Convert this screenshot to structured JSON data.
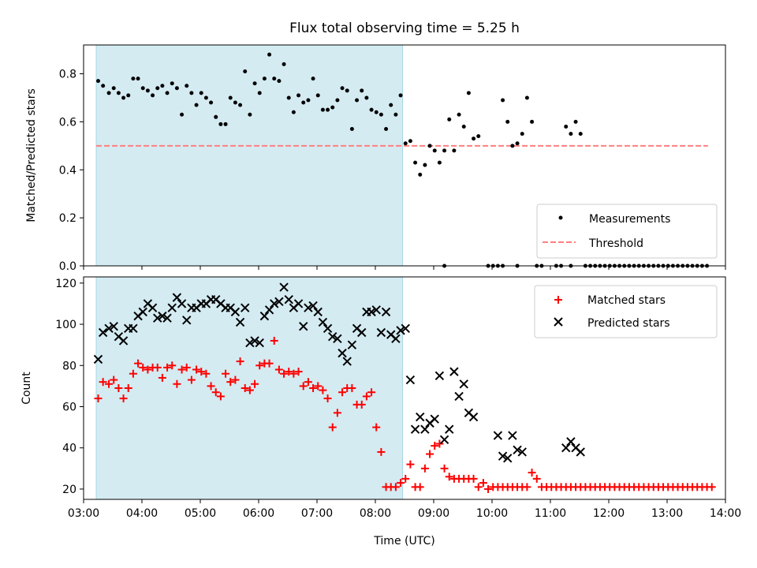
{
  "chart_data": [
    {
      "type": "scatter",
      "title": "Flux total observing time = 5.25 h",
      "xlabel": "",
      "ylabel": "Matched/Predicted stars",
      "xlim": [
        "03:00",
        "14:00"
      ],
      "ylim": [
        0,
        0.92
      ],
      "yticks": [
        "0.0",
        "0.2",
        "0.4",
        "0.6",
        "0.8"
      ],
      "shaded_region": {
        "start": "03:13",
        "end": "08:28",
        "color": "#d4ebf2"
      },
      "legend": {
        "position": "bottom-right",
        "entries": [
          "Measurements",
          "Threshold"
        ]
      },
      "series": [
        {
          "name": "Threshold",
          "style": "dashed-line",
          "color": "#ff7f7f",
          "x": [
            "03:13",
            "13:42"
          ],
          "y": [
            0.5,
            0.5
          ]
        },
        {
          "name": "Measurements",
          "style": "dot",
          "color": "#000000",
          "x": [
            "03:15",
            "03:20",
            "03:26",
            "03:31",
            "03:36",
            "03:41",
            "03:46",
            "03:51",
            "03:56",
            "04:01",
            "04:06",
            "04:11",
            "04:16",
            "04:21",
            "04:26",
            "04:31",
            "04:36",
            "04:41",
            "04:46",
            "04:51",
            "04:56",
            "05:01",
            "05:06",
            "05:11",
            "05:16",
            "05:21",
            "05:26",
            "05:31",
            "05:36",
            "05:41",
            "05:46",
            "05:51",
            "05:56",
            "06:01",
            "06:06",
            "06:11",
            "06:16",
            "06:21",
            "06:26",
            "06:31",
            "06:36",
            "06:41",
            "06:46",
            "06:51",
            "06:56",
            "07:01",
            "07:06",
            "07:11",
            "07:16",
            "07:21",
            "07:26",
            "07:31",
            "07:36",
            "07:41",
            "07:46",
            "07:51",
            "07:56",
            "08:01",
            "08:06",
            "08:11",
            "08:16",
            "08:21",
            "08:26",
            "08:31",
            "08:36",
            "08:41",
            "08:46",
            "08:51",
            "08:56",
            "09:01",
            "09:06",
            "09:11",
            "09:16",
            "09:21",
            "09:26",
            "09:31",
            "09:36",
            "09:41",
            "09:46",
            "10:11",
            "10:16",
            "10:21",
            "10:26",
            "10:31",
            "10:36",
            "10:41",
            "11:16",
            "11:21",
            "11:26",
            "11:31",
            "09:11",
            "09:56",
            "10:01",
            "10:06",
            "10:11",
            "10:26",
            "10:46",
            "10:51",
            "11:06",
            "11:11",
            "11:21",
            "11:36",
            "11:41",
            "11:46",
            "11:51",
            "11:56",
            "12:01",
            "12:06",
            "12:11",
            "12:16",
            "12:21",
            "12:26",
            "12:31",
            "12:36",
            "12:41",
            "12:46",
            "12:51",
            "12:56",
            "13:01",
            "13:06",
            "13:11",
            "13:16",
            "13:21",
            "13:26",
            "13:31",
            "13:36",
            "13:41"
          ],
          "y": [
            0.77,
            0.75,
            0.72,
            0.74,
            0.72,
            0.7,
            0.71,
            0.78,
            0.78,
            0.74,
            0.73,
            0.71,
            0.74,
            0.75,
            0.72,
            0.76,
            0.74,
            0.63,
            0.75,
            0.72,
            0.67,
            0.72,
            0.7,
            0.68,
            0.62,
            0.59,
            0.59,
            0.7,
            0.68,
            0.67,
            0.81,
            0.63,
            0.76,
            0.72,
            0.78,
            0.88,
            0.78,
            0.77,
            0.84,
            0.7,
            0.64,
            0.71,
            0.68,
            0.69,
            0.78,
            0.71,
            0.65,
            0.65,
            0.66,
            0.69,
            0.74,
            0.73,
            0.57,
            0.69,
            0.73,
            0.7,
            0.65,
            0.64,
            0.63,
            0.57,
            0.67,
            0.63,
            0.71,
            0.51,
            0.52,
            0.43,
            0.38,
            0.42,
            0.5,
            0.48,
            0.43,
            0.48,
            0.61,
            0.48,
            0.63,
            0.58,
            0.72,
            0.53,
            0.54,
            0.69,
            0.6,
            0.5,
            0.51,
            0.55,
            0.7,
            0.6,
            0.58,
            0.55,
            0.6,
            0.55,
            0.0,
            0.0,
            0.0,
            0.0,
            0.0,
            0.0,
            0.0,
            0.0,
            0.0,
            0.0,
            0.0,
            0.0,
            0.0,
            0.0,
            0.0,
            0.0,
            0.0,
            0.0,
            0.0,
            0.0,
            0.0,
            0.0,
            0.0,
            0.0,
            0.0,
            0.0,
            0.0,
            0.0,
            0.0,
            0.0,
            0.0,
            0.0,
            0.0,
            0.0,
            0.0,
            0.0,
            0.0
          ]
        }
      ]
    },
    {
      "type": "scatter",
      "title": "",
      "xlabel": "Time (UTC)",
      "ylabel": "Count",
      "xlim": [
        "03:00",
        "14:00"
      ],
      "ylim": [
        15,
        123
      ],
      "xticks": [
        "03:00",
        "04:00",
        "05:00",
        "06:00",
        "07:00",
        "08:00",
        "09:00",
        "10:00",
        "11:00",
        "12:00",
        "13:00",
        "14:00"
      ],
      "yticks": [
        "20",
        "40",
        "60",
        "80",
        "100",
        "120"
      ],
      "shaded_region": {
        "start": "03:13",
        "end": "08:28",
        "color": "#d4ebf2"
      },
      "legend": {
        "position": "top-right",
        "entries": [
          "Matched stars",
          "Predicted stars"
        ]
      },
      "series": [
        {
          "name": "Matched stars",
          "marker": "plus",
          "color": "#ff0000",
          "x": [
            "03:15",
            "03:20",
            "03:26",
            "03:31",
            "03:36",
            "03:41",
            "03:46",
            "03:51",
            "03:56",
            "04:01",
            "04:06",
            "04:11",
            "04:16",
            "04:21",
            "04:26",
            "04:31",
            "04:36",
            "04:41",
            "04:46",
            "04:51",
            "04:56",
            "05:01",
            "05:06",
            "05:11",
            "05:16",
            "05:21",
            "05:26",
            "05:31",
            "05:36",
            "05:41",
            "05:46",
            "05:51",
            "05:56",
            "06:01",
            "06:06",
            "06:11",
            "06:16",
            "06:21",
            "06:26",
            "06:31",
            "06:36",
            "06:41",
            "06:46",
            "06:51",
            "06:56",
            "07:01",
            "07:06",
            "07:11",
            "07:16",
            "07:21",
            "07:26",
            "07:31",
            "07:36",
            "07:41",
            "07:46",
            "07:51",
            "07:56",
            "08:01",
            "08:06",
            "08:11",
            "08:16",
            "08:21",
            "08:26",
            "08:31",
            "08:36",
            "08:41",
            "08:46",
            "08:51",
            "08:56",
            "09:01",
            "09:06",
            "09:11",
            "09:16",
            "09:21",
            "09:26",
            "09:31",
            "09:36",
            "09:41",
            "09:46",
            "09:51",
            "09:56",
            "10:01",
            "10:06",
            "10:11",
            "10:16",
            "10:21",
            "10:26",
            "10:31",
            "10:36",
            "10:41",
            "10:46",
            "10:51",
            "10:56",
            "11:01",
            "11:06",
            "11:11",
            "11:16",
            "11:21",
            "11:26",
            "11:31",
            "11:36",
            "11:41",
            "11:46",
            "11:51",
            "11:56",
            "12:01",
            "12:06",
            "12:11",
            "12:16",
            "12:21",
            "12:26",
            "12:31",
            "12:36",
            "12:41",
            "12:46",
            "12:51",
            "12:56",
            "13:01",
            "13:06",
            "13:11",
            "13:16",
            "13:21",
            "13:26",
            "13:31",
            "13:36",
            "13:41",
            "13:46"
          ],
          "y": [
            64,
            72,
            71,
            73,
            69,
            64,
            69,
            76,
            81,
            79,
            78,
            79,
            79,
            74,
            79,
            80,
            71,
            78,
            79,
            73,
            78,
            77,
            76,
            70,
            67,
            65,
            76,
            72,
            73,
            82,
            69,
            68,
            71,
            80,
            81,
            81,
            92,
            78,
            76,
            77,
            76,
            77,
            70,
            72,
            69,
            70,
            68,
            64,
            50,
            57,
            67,
            69,
            69,
            61,
            61,
            65,
            67,
            50,
            38,
            21,
            21,
            21,
            23,
            25,
            32,
            21,
            21,
            30,
            37,
            41,
            42,
            30,
            26,
            25,
            25,
            25,
            25,
            25,
            21,
            23,
            20,
            21,
            21,
            21,
            21,
            21,
            21,
            21,
            21,
            28,
            25,
            21,
            21,
            21,
            21,
            21,
            21,
            21,
            21,
            21,
            21,
            21,
            21,
            21,
            21,
            21,
            21,
            21,
            21,
            21,
            21,
            21,
            21,
            21,
            21,
            21,
            21,
            21,
            21,
            21,
            21,
            21,
            21,
            21,
            21,
            21,
            21
          ]
        },
        {
          "name": "Predicted stars",
          "marker": "x",
          "color": "#000000",
          "x": [
            "03:15",
            "03:20",
            "03:26",
            "03:31",
            "03:36",
            "03:41",
            "03:46",
            "03:51",
            "03:56",
            "04:01",
            "04:06",
            "04:11",
            "04:16",
            "04:21",
            "04:26",
            "04:31",
            "04:36",
            "04:41",
            "04:46",
            "04:51",
            "04:56",
            "05:01",
            "05:06",
            "05:11",
            "05:16",
            "05:21",
            "05:26",
            "05:31",
            "05:36",
            "05:41",
            "05:46",
            "05:51",
            "05:56",
            "06:01",
            "06:06",
            "06:11",
            "06:16",
            "06:21",
            "06:26",
            "06:31",
            "06:36",
            "06:41",
            "06:46",
            "06:51",
            "06:56",
            "07:01",
            "07:06",
            "07:11",
            "07:16",
            "07:21",
            "07:26",
            "07:31",
            "07:36",
            "07:41",
            "07:46",
            "07:51",
            "07:56",
            "08:01",
            "08:06",
            "08:11",
            "08:16",
            "08:21",
            "08:26",
            "08:31",
            "08:36",
            "08:41",
            "08:46",
            "08:51",
            "08:56",
            "09:01",
            "09:06",
            "09:11",
            "09:16",
            "09:21",
            "09:26",
            "09:31",
            "09:36",
            "09:41",
            "10:06",
            "10:11",
            "10:16",
            "10:21",
            "10:26",
            "10:31",
            "11:16",
            "11:21",
            "11:26",
            "11:31"
          ],
          "y": [
            83,
            96,
            98,
            99,
            94,
            92,
            98,
            98,
            104,
            106,
            110,
            108,
            103,
            104,
            103,
            108,
            113,
            110,
            102,
            108,
            108,
            110,
            110,
            112,
            112,
            110,
            108,
            108,
            106,
            101,
            108,
            91,
            92,
            91,
            104,
            107,
            110,
            111,
            118,
            112,
            108,
            110,
            99,
            108,
            109,
            106,
            101,
            98,
            94,
            93,
            86,
            82,
            90,
            98,
            96,
            106,
            106,
            107,
            96,
            106,
            95,
            93,
            97,
            98,
            73,
            49,
            55,
            49,
            52,
            54,
            75,
            44,
            49,
            77,
            65,
            71,
            57,
            55,
            46,
            36,
            35,
            46,
            39,
            38,
            40,
            43,
            40,
            38
          ]
        }
      ]
    }
  ]
}
